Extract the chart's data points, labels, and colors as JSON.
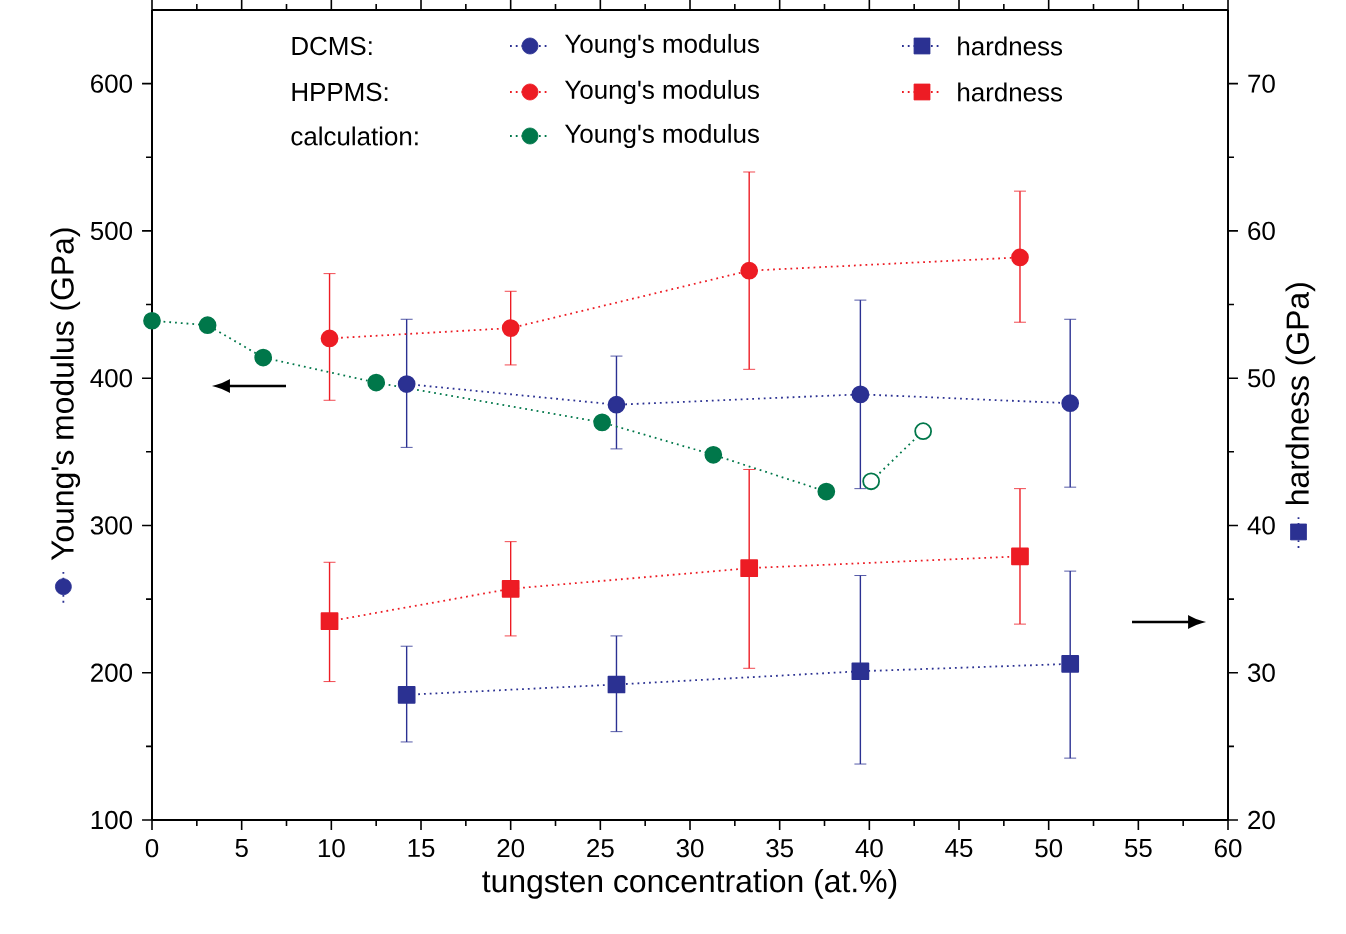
{
  "chart_data": {
    "type": "line",
    "xlabel": "tungsten concentration (at.%)",
    "ylabel": "Young's modulus (GPa)",
    "y2label": "hardness (GPa)",
    "xlim": [
      0,
      60
    ],
    "xticks": [
      0,
      5,
      10,
      15,
      20,
      25,
      30,
      35,
      40,
      45,
      50,
      55,
      60
    ],
    "ylim": [
      100,
      650
    ],
    "yticks": [
      100,
      200,
      300,
      400,
      500,
      600
    ],
    "y2lim": [
      20,
      75
    ],
    "y2ticks": [
      20,
      30,
      40,
      50,
      60,
      70
    ],
    "legend": "top",
    "line_style": "dotted",
    "grid": false,
    "annotations": [
      "DCMS:",
      "HPPMS:",
      "calculation:"
    ],
    "series": [
      {
        "name": "Young's modulus",
        "color": "#2b3192",
        "marker": "circle",
        "x": [
          14.2,
          25.9,
          39.5,
          51.2
        ],
        "values": [
          396,
          382,
          389,
          383
        ],
        "errors": [
          [
            353,
            440
          ],
          [
            352,
            415
          ],
          [
            325,
            453
          ],
          [
            326,
            440
          ]
        ]
      },
      {
        "name": "hardness",
        "color": "#2b3192",
        "marker": "square",
        "axis": "y2",
        "x": [
          14.2,
          25.9,
          39.5,
          51.2
        ],
        "values": [
          28.5,
          29.2,
          30.1,
          30.6
        ],
        "errors": [
          [
            25.3,
            31.8
          ],
          [
            26.0,
            32.5
          ],
          [
            23.8,
            36.6
          ],
          [
            24.2,
            36.9
          ]
        ]
      },
      {
        "name": "Young's modulus",
        "color": "#ed1c24",
        "marker": "circle",
        "x": [
          9.9,
          20.0,
          33.3,
          48.4
        ],
        "values": [
          427,
          434,
          473,
          482
        ],
        "errors": [
          [
            385,
            471
          ],
          [
            409,
            459
          ],
          [
            406,
            540
          ],
          [
            438,
            527
          ]
        ]
      },
      {
        "name": "hardness",
        "color": "#ed1c24",
        "marker": "square",
        "axis": "y2",
        "x": [
          9.9,
          20.0,
          33.3,
          48.4
        ],
        "values": [
          33.5,
          35.7,
          37.1,
          37.9
        ],
        "errors": [
          [
            29.4,
            37.5
          ],
          [
            32.5,
            38.9
          ],
          [
            30.3,
            43.8
          ],
          [
            33.3,
            42.5
          ]
        ]
      },
      {
        "name": "Young's modulus",
        "color": "#00774a",
        "marker": "circle",
        "x": [
          0,
          3.1,
          6.2,
          12.5,
          25.1,
          31.3,
          37.6
        ],
        "values": [
          439,
          436,
          414,
          397,
          370,
          348,
          323
        ]
      },
      {
        "color": "#00774a",
        "marker": "circle",
        "x": [
          40.1,
          43.0
        ],
        "values": [
          330,
          364
        ]
      }
    ]
  }
}
